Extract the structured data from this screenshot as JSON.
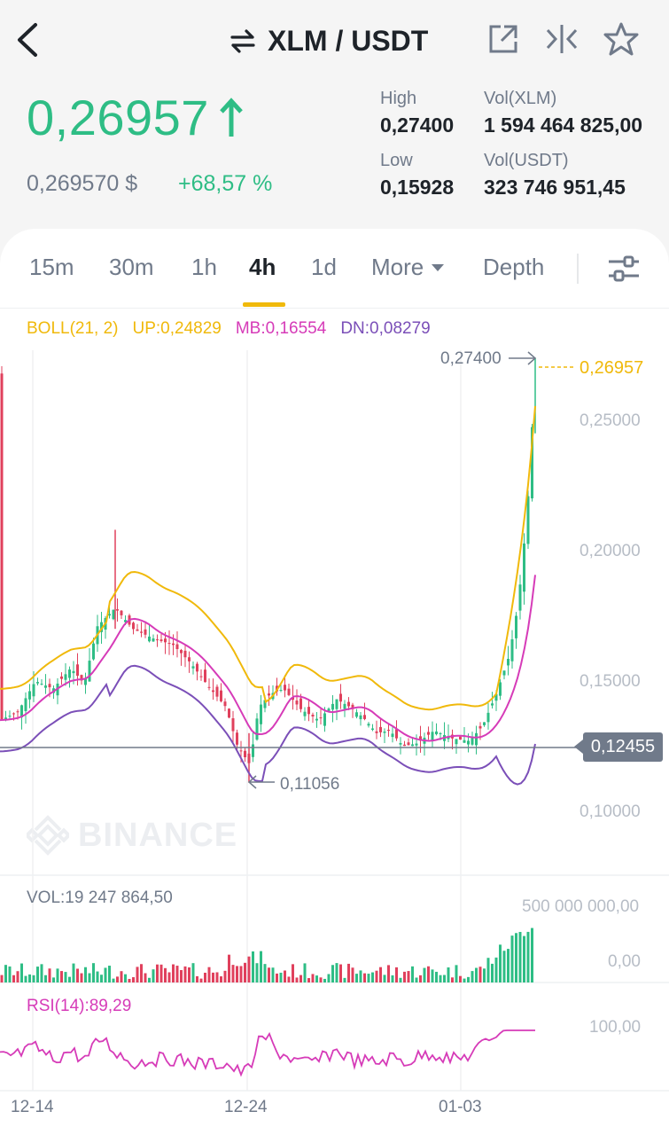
{
  "header": {
    "pair": "XLM / USDT",
    "icons": [
      "back-arrow-icon",
      "swap-arrows-icon",
      "external-link-icon",
      "compare-icon",
      "star-icon"
    ]
  },
  "ticker": {
    "last_price": "0,26957",
    "price_usd": "0,269570 $",
    "change_pct": "+68,57 %",
    "high_label": "High",
    "high_value": "0,27400",
    "low_label": "Low",
    "low_value": "0,15928",
    "vol_base_label": "Vol(XLM)",
    "vol_base_value": "1 594 464 825,00",
    "vol_quote_label": "Vol(USDT)",
    "vol_quote_value": "323 746 951,45"
  },
  "tabs": {
    "items": [
      "15m",
      "30m",
      "1h",
      "4h",
      "1d",
      "More",
      "Depth"
    ],
    "active": "4h"
  },
  "indicators": {
    "boll": "BOLL(21, 2)",
    "up": "UP:0,24829",
    "mb": "MB:0,16554",
    "dn": "DN:0,08279",
    "vol": "VOL:19 247 864,50",
    "rsi": "RSI(14):89,29"
  },
  "chart": {
    "high_marker": "0,27400",
    "low_marker": "0,11056",
    "current_price": "0,26957",
    "ref_price": "0,12455",
    "price_axis": [
      "0,25000",
      "0,20000",
      "0,15000",
      "0,10000"
    ],
    "vol_axis": [
      "500 000 000,00",
      "0,00"
    ],
    "rsi_axis": [
      "100,00"
    ],
    "dates": [
      "12-14",
      "12-24",
      "01-03"
    ],
    "watermark": "BINANCE"
  },
  "colors": {
    "up": "#2ebd85",
    "down": "#e0405c",
    "boll_up": "#f0b90b",
    "boll_mb": "#d63bb8",
    "boll_dn": "#7b4fb8",
    "accent": "#f0b90b"
  }
}
